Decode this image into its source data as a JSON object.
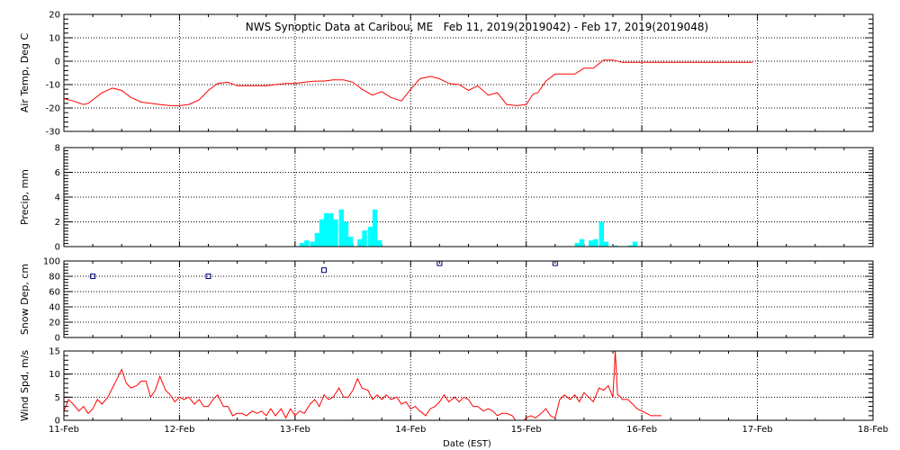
{
  "chart_data": {
    "type": "line",
    "title": "NWS Synoptic Data at Caribou, ME   Feb 11, 2019(2019042) - Feb 17, 2019(2019048)",
    "xlabel": "Date (EST)",
    "x_ticks": [
      "11-Feb",
      "12-Feb",
      "13-Feb",
      "14-Feb",
      "15-Feb",
      "16-Feb",
      "17-Feb",
      "18-Feb"
    ],
    "xlim": [
      0,
      7
    ],
    "x_unit": "days since 11-Feb 00:00 EST",
    "grid": true,
    "panels": [
      {
        "id": "airtemp",
        "type": "line",
        "ylabel": "Air Temp, Deg C",
        "ylim": [
          -30,
          20
        ],
        "yticks": [
          20,
          10,
          0,
          -10,
          -20,
          -30
        ],
        "color": "#ff0000",
        "series": {
          "x": [
            0.0,
            0.08,
            0.17,
            0.21,
            0.25,
            0.33,
            0.42,
            0.5,
            0.58,
            0.67,
            0.75,
            0.83,
            0.92,
            1.0,
            1.08,
            1.17,
            1.25,
            1.33,
            1.42,
            1.5,
            1.58,
            1.67,
            1.75,
            1.83,
            1.92,
            2.0,
            2.08,
            2.17,
            2.25,
            2.33,
            2.42,
            2.5,
            2.58,
            2.67,
            2.75,
            2.83,
            2.92,
            3.0,
            3.08,
            3.17,
            3.25,
            3.33,
            3.42,
            3.5,
            3.58,
            3.67,
            3.75,
            3.83,
            3.92,
            4.0,
            4.06,
            4.1,
            4.17,
            4.25,
            4.33,
            4.42,
            4.5,
            4.58,
            4.67,
            4.75,
            4.83,
            4.92,
            5.0,
            5.04,
            5.08,
            5.5,
            5.96
          ],
          "y": [
            -16.0,
            -17.0,
            -18.5,
            -18.0,
            -16.5,
            -13.5,
            -11.5,
            -12.5,
            -15.5,
            -17.5,
            -18.0,
            -18.5,
            -19.0,
            -19.0,
            -18.5,
            -16.5,
            -12.5,
            -9.5,
            -9.0,
            -10.5,
            -10.5,
            -10.5,
            -10.5,
            -10.0,
            -9.5,
            -9.5,
            -9.0,
            -8.5,
            -8.5,
            -8.0,
            -8.0,
            -9.0,
            -12.0,
            -14.5,
            -13.0,
            -15.5,
            -17.0,
            -12.0,
            -7.5,
            -6.5,
            -7.5,
            -9.5,
            -10.0,
            -12.5,
            -10.5,
            -14.5,
            -13.5,
            -18.5,
            -19.0,
            -18.5,
            -14.0,
            -13.5,
            -8.5,
            -5.5,
            -5.5,
            -5.5,
            -3.0,
            -3.0,
            0.5,
            0.5,
            -0.5,
            -0.5,
            -0.5,
            -0.5,
            -0.5,
            -0.5,
            -0.5
          ]
        }
      },
      {
        "id": "precip",
        "type": "bar",
        "ylabel": "Precip, mm",
        "ylim": [
          0,
          8
        ],
        "yticks": [
          8,
          6,
          4,
          2,
          0
        ],
        "color": "#00ffff",
        "bar_width": 0.042,
        "series": {
          "x": [
            2.04,
            2.08,
            2.13,
            2.17,
            2.21,
            2.25,
            2.29,
            2.33,
            2.38,
            2.42,
            2.46,
            2.54,
            2.58,
            2.63,
            2.67,
            2.71,
            4.42,
            4.46,
            4.54,
            4.58,
            4.63,
            4.67,
            4.75,
            4.88,
            4.92
          ],
          "y": [
            0.3,
            0.5,
            0.4,
            1.1,
            2.2,
            2.7,
            2.7,
            2.2,
            3.0,
            2.0,
            0.8,
            0.6,
            1.3,
            1.6,
            3.0,
            0.5,
            0.3,
            0.6,
            0.5,
            0.6,
            2.0,
            0.4,
            0.1,
            0.1,
            0.4
          ]
        }
      },
      {
        "id": "snowdep",
        "type": "scatter",
        "ylabel": "Snow Dep, cm",
        "ylim": [
          0,
          100
        ],
        "yticks": [
          100,
          80,
          60,
          40,
          20,
          0
        ],
        "color": "#000080",
        "series": {
          "x": [
            0.25,
            1.25,
            2.25,
            3.25,
            4.25
          ],
          "y": [
            80,
            80,
            88,
            97,
            97
          ]
        }
      },
      {
        "id": "windspd",
        "type": "line",
        "ylabel": "Wind Spd, m/s",
        "ylim": [
          0,
          15
        ],
        "yticks": [
          15,
          10,
          5,
          0
        ],
        "color": "#ff0000",
        "series": {
          "x": [
            0.0,
            0.04,
            0.08,
            0.13,
            0.17,
            0.21,
            0.25,
            0.29,
            0.33,
            0.38,
            0.42,
            0.46,
            0.5,
            0.54,
            0.58,
            0.63,
            0.67,
            0.71,
            0.75,
            0.79,
            0.83,
            0.88,
            0.92,
            0.96,
            1.0,
            1.04,
            1.08,
            1.13,
            1.17,
            1.21,
            1.25,
            1.29,
            1.33,
            1.38,
            1.42,
            1.46,
            1.5,
            1.54,
            1.58,
            1.63,
            1.67,
            1.71,
            1.75,
            1.79,
            1.83,
            1.88,
            1.92,
            1.96,
            2.0,
            2.04,
            2.08,
            2.13,
            2.17,
            2.21,
            2.25,
            2.29,
            2.33,
            2.38,
            2.42,
            2.46,
            2.5,
            2.54,
            2.58,
            2.63,
            2.67,
            2.71,
            2.75,
            2.79,
            2.83,
            2.88,
            2.92,
            2.96,
            3.0,
            3.04,
            3.08,
            3.13,
            3.17,
            3.21,
            3.25,
            3.29,
            3.33,
            3.38,
            3.42,
            3.46,
            3.5,
            3.54,
            3.58,
            3.63,
            3.67,
            3.71,
            3.75,
            3.79,
            3.83,
            3.88,
            3.92,
            3.96,
            4.0,
            4.04,
            4.08,
            4.13,
            4.17,
            4.21,
            4.25,
            4.29,
            4.33,
            4.38,
            4.42,
            4.46,
            4.5,
            4.54,
            4.58,
            4.63,
            4.67,
            4.71,
            4.75,
            4.77,
            4.79,
            4.82,
            4.83,
            4.88,
            4.92,
            4.96,
            5.0,
            5.04,
            5.08,
            5.13,
            5.17
          ],
          "y": [
            2.0,
            4.5,
            3.5,
            2.0,
            3.0,
            1.5,
            2.5,
            4.5,
            3.5,
            5.0,
            7.0,
            9.0,
            11.0,
            8.0,
            7.0,
            7.5,
            8.5,
            8.5,
            5.0,
            6.5,
            9.5,
            6.5,
            5.5,
            4.0,
            5.0,
            4.5,
            5.0,
            3.5,
            4.5,
            3.0,
            3.0,
            4.5,
            5.5,
            3.0,
            3.0,
            1.0,
            1.5,
            1.5,
            1.0,
            2.0,
            1.5,
            2.0,
            1.0,
            2.5,
            1.0,
            2.5,
            0.5,
            2.5,
            1.0,
            2.0,
            1.5,
            3.5,
            4.5,
            3.0,
            5.5,
            4.5,
            5.0,
            7.0,
            5.0,
            5.0,
            6.5,
            9.0,
            7.0,
            6.5,
            4.5,
            5.5,
            4.5,
            5.5,
            4.5,
            5.0,
            3.5,
            4.0,
            2.5,
            3.0,
            2.0,
            1.0,
            2.5,
            3.0,
            4.0,
            5.5,
            4.0,
            5.0,
            4.0,
            5.0,
            4.5,
            3.0,
            3.0,
            2.0,
            2.5,
            2.0,
            1.0,
            1.5,
            1.5,
            1.0,
            -0.5,
            -0.5,
            0.5,
            1.0,
            0.5,
            1.5,
            2.5,
            1.0,
            0.5,
            4.5,
            5.5,
            4.5,
            5.5,
            4.0,
            6.0,
            5.0,
            4.0,
            7.0,
            6.5,
            7.5,
            5.0,
            15.0,
            5.5,
            5.0,
            4.5,
            4.5,
            3.5,
            2.5,
            2.0,
            1.5,
            1.0,
            1.0,
            1.0
          ]
        }
      }
    ]
  }
}
